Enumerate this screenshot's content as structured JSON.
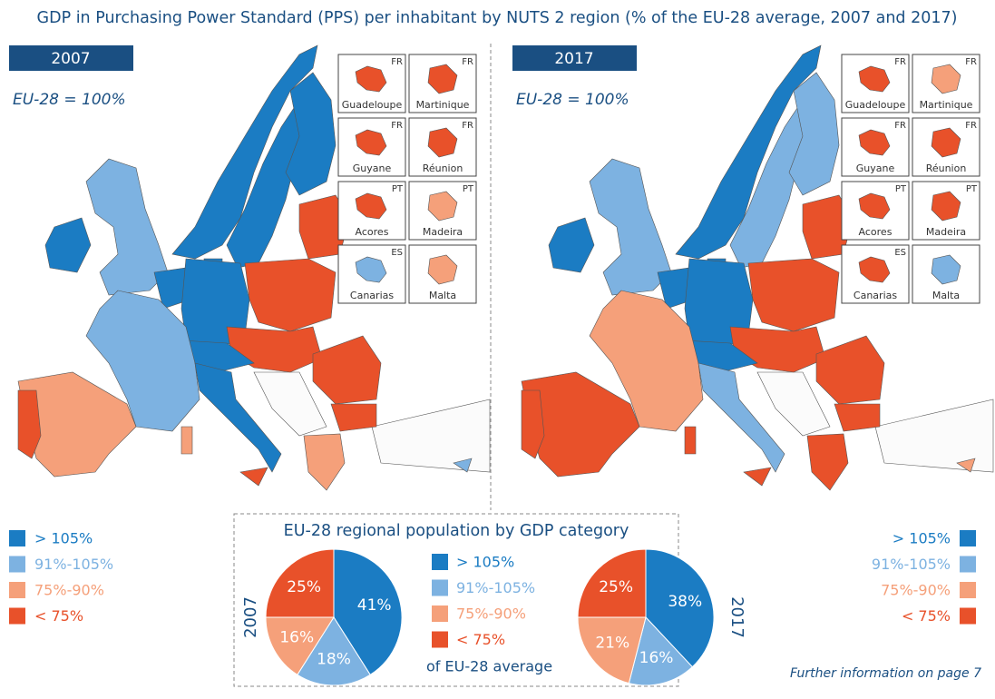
{
  "title": "GDP in Purchasing Power Standard (PPS) per inhabitant by NUTS 2 region (% of the EU-28 average, 2007 and 2017)",
  "maps": [
    {
      "year": "2007",
      "note": "EU-28 = 100%",
      "insets": [
        {
          "name": "Guadeloupe",
          "country": "FR"
        },
        {
          "name": "Martinique",
          "country": "FR"
        },
        {
          "name": "Guyane",
          "country": "FR"
        },
        {
          "name": "Réunion",
          "country": "FR"
        },
        {
          "name": "Acores",
          "country": "PT"
        },
        {
          "name": "Madeira",
          "country": "PT"
        },
        {
          "name": "Canarias",
          "country": "ES"
        },
        {
          "name": "Malta"
        }
      ]
    },
    {
      "year": "2017",
      "note": "EU-28 = 100%",
      "insets": [
        {
          "name": "Guadeloupe",
          "country": "FR"
        },
        {
          "name": "Martinique",
          "country": "FR"
        },
        {
          "name": "Guyane",
          "country": "FR"
        },
        {
          "name": "Réunion",
          "country": "FR"
        },
        {
          "name": "Acores",
          "country": "PT"
        },
        {
          "name": "Madeira",
          "country": "PT"
        },
        {
          "name": "Canarias",
          "country": "ES"
        },
        {
          "name": "Malta"
        }
      ]
    }
  ],
  "pie_panel": {
    "title": "EU-28 regional population by GDP category",
    "legend_note": "of EU-28 average"
  },
  "chart_data": [
    {
      "type": "pie",
      "title": "2007",
      "categories": [
        "> 105%",
        "91%-105%",
        "75%-90%",
        "< 75%"
      ],
      "colors": [
        "#1b7cc3",
        "#7db2e1",
        "#f5a07a",
        "#e8512a"
      ],
      "values": [
        41,
        18,
        16,
        25
      ],
      "value_labels": [
        "41%",
        "18%",
        "16%",
        "25%"
      ]
    },
    {
      "type": "pie",
      "title": "2017",
      "categories": [
        "> 105%",
        "91%-105%",
        "75%-90%",
        "< 75%"
      ],
      "colors": [
        "#1b7cc3",
        "#7db2e1",
        "#f5a07a",
        "#e8512a"
      ],
      "values": [
        38,
        16,
        21,
        25
      ],
      "value_labels": [
        "38%",
        "16%",
        "21%",
        "25%"
      ]
    }
  ],
  "footer": "Further information on page 7"
}
